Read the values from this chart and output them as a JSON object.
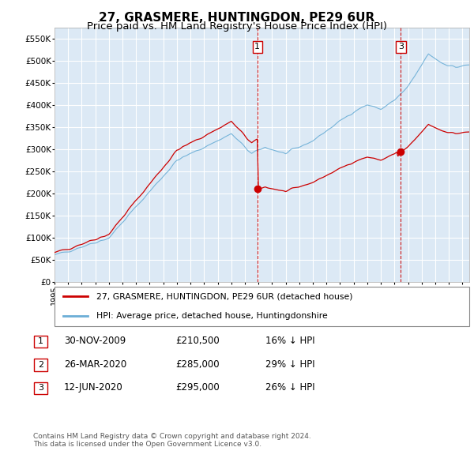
{
  "title": "27, GRASMERE, HUNTINGDON, PE29 6UR",
  "subtitle": "Price paid vs. HM Land Registry's House Price Index (HPI)",
  "ylim": [
    0,
    575000
  ],
  "yticks": [
    0,
    50000,
    100000,
    150000,
    200000,
    250000,
    300000,
    350000,
    400000,
    450000,
    500000,
    550000
  ],
  "ytick_labels": [
    "£0",
    "£50K",
    "£100K",
    "£150K",
    "£200K",
    "£250K",
    "£300K",
    "£350K",
    "£400K",
    "£450K",
    "£500K",
    "£550K"
  ],
  "xlim_start": 1995,
  "xlim_end": 2025.5,
  "plot_bg": "#dce9f5",
  "grid_color": "#ffffff",
  "hpi_color": "#6baed6",
  "price_color": "#cc0000",
  "vline_color": "#cc0000",
  "transactions": [
    {
      "date_num": 2009.92,
      "price": 210500,
      "label": "1",
      "vline": true
    },
    {
      "date_num": 2020.24,
      "price": 285000,
      "label": "2",
      "vline": false
    },
    {
      "date_num": 2020.46,
      "price": 295000,
      "label": "3",
      "vline": true
    }
  ],
  "legend_entries": [
    {
      "label": "27, GRASMERE, HUNTINGDON, PE29 6UR (detached house)",
      "color": "#cc0000"
    },
    {
      "label": "HPI: Average price, detached house, Huntingdonshire",
      "color": "#6baed6"
    }
  ],
  "table_rows": [
    {
      "num": "1",
      "date": "30-NOV-2009",
      "price": "£210,500",
      "note": "16% ↓ HPI"
    },
    {
      "num": "2",
      "date": "26-MAR-2020",
      "price": "£285,000",
      "note": "29% ↓ HPI"
    },
    {
      "num": "3",
      "date": "12-JUN-2020",
      "price": "£295,000",
      "note": "26% ↓ HPI"
    }
  ],
  "footer": "Contains HM Land Registry data © Crown copyright and database right 2024.\nThis data is licensed under the Open Government Licence v3.0.",
  "title_fontsize": 11,
  "subtitle_fontsize": 9.5
}
